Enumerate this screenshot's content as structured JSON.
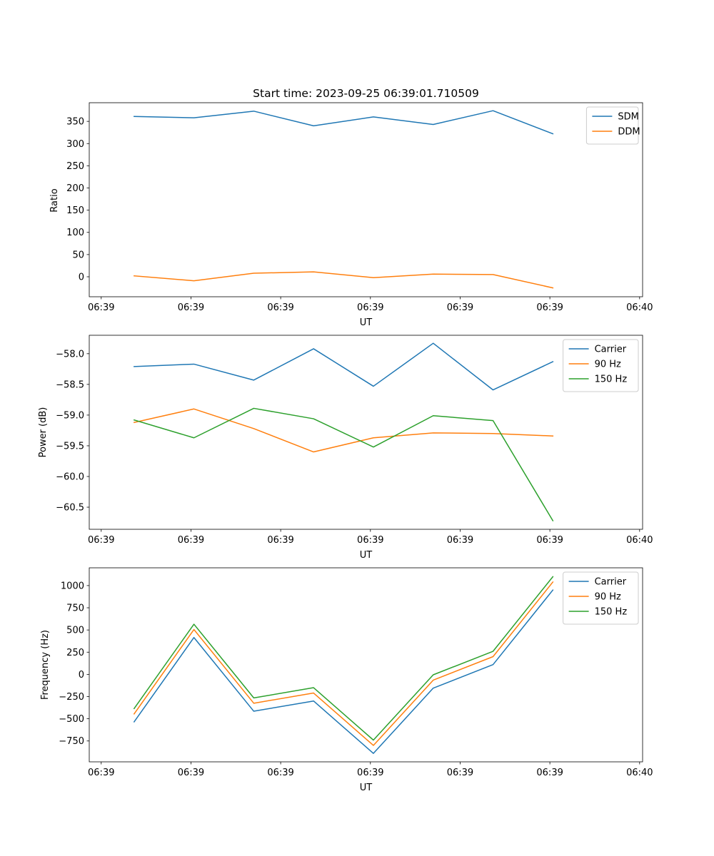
{
  "chart_data": [
    {
      "type": "line",
      "title": "Start time: 2023-09-25 06:39:01.710509",
      "xlabel": "UT",
      "ylabel": "Ratio",
      "x": [
        0,
        1,
        2,
        3,
        4,
        5,
        6,
        7
      ],
      "xlim": [
        -0.75,
        8.5
      ],
      "xticks": [
        -0.55,
        0.95,
        2.45,
        3.95,
        5.45,
        6.95,
        8.45
      ],
      "xtick_labels": [
        "06:39",
        "06:39",
        "06:39",
        "06:39",
        "06:39",
        "06:39",
        "06:40"
      ],
      "ylim": [
        -45,
        392
      ],
      "yticks": [
        0,
        50,
        100,
        150,
        200,
        250,
        300,
        350
      ],
      "ytick_labels": [
        "0",
        "50",
        "100",
        "150",
        "200",
        "250",
        "300",
        "350"
      ],
      "legend": "top-right",
      "series": [
        {
          "name": "SDM",
          "color": "#1f77b4",
          "values": [
            361,
            358,
            373,
            340,
            360,
            343,
            374,
            322
          ]
        },
        {
          "name": "DDM",
          "color": "#ff7f0e",
          "values": [
            2,
            -9,
            8,
            11,
            -2,
            6,
            5,
            -25
          ]
        }
      ]
    },
    {
      "type": "line",
      "title": "",
      "xlabel": "UT",
      "ylabel": "Power (dB)",
      "x": [
        0,
        1,
        2,
        3,
        4,
        5,
        6,
        7
      ],
      "xlim": [
        -0.75,
        8.5
      ],
      "xticks": [
        -0.55,
        0.95,
        2.45,
        3.95,
        5.45,
        6.95,
        8.45
      ],
      "xtick_labels": [
        "06:39",
        "06:39",
        "06:39",
        "06:39",
        "06:39",
        "06:39",
        "06:40"
      ],
      "ylim": [
        -60.86,
        -57.7
      ],
      "yticks": [
        -60.5,
        -60.0,
        -59.5,
        -59.0,
        -58.5,
        -58.0
      ],
      "ytick_labels": [
        "−60.5",
        "−60.0",
        "−59.5",
        "−59.0",
        "−58.5",
        "−58.0"
      ],
      "legend": "top-right",
      "series": [
        {
          "name": "Carrier",
          "color": "#1f77b4",
          "values": [
            -58.21,
            -58.17,
            -58.43,
            -57.92,
            -58.53,
            -57.83,
            -58.59,
            -58.13
          ]
        },
        {
          "name": "90 Hz",
          "color": "#ff7f0e",
          "values": [
            -59.12,
            -58.9,
            -59.22,
            -59.6,
            -59.37,
            -59.29,
            -59.3,
            -59.34
          ]
        },
        {
          "name": "150 Hz",
          "color": "#2ca02c",
          "values": [
            -59.08,
            -59.37,
            -58.89,
            -59.06,
            -59.52,
            -59.01,
            -59.09,
            -60.72
          ]
        }
      ]
    },
    {
      "type": "line",
      "title": "",
      "xlabel": "UT",
      "ylabel": "Frequency (Hz)",
      "x": [
        0,
        1,
        2,
        3,
        4,
        5,
        6,
        7
      ],
      "xlim": [
        -0.75,
        8.5
      ],
      "xticks": [
        -0.55,
        0.95,
        2.45,
        3.95,
        5.45,
        6.95,
        8.45
      ],
      "xtick_labels": [
        "06:39",
        "06:39",
        "06:39",
        "06:39",
        "06:39",
        "06:39",
        "06:40"
      ],
      "ylim": [
        -985,
        1200
      ],
      "yticks": [
        -750,
        -500,
        -250,
        0,
        250,
        500,
        750,
        1000
      ],
      "ytick_labels": [
        "−750",
        "−500",
        "−250",
        "0",
        "250",
        "500",
        "750",
        "1000"
      ],
      "legend": "top-right",
      "series": [
        {
          "name": "Carrier",
          "color": "#1f77b4",
          "values": [
            -535,
            415,
            -415,
            -300,
            -890,
            -155,
            110,
            950
          ]
        },
        {
          "name": "90 Hz",
          "color": "#ff7f0e",
          "values": [
            -445,
            505,
            -325,
            -210,
            -800,
            -65,
            200,
            1040
          ]
        },
        {
          "name": "150 Hz",
          "color": "#2ca02c",
          "values": [
            -385,
            565,
            -265,
            -150,
            -740,
            -5,
            260,
            1100
          ]
        }
      ]
    }
  ]
}
